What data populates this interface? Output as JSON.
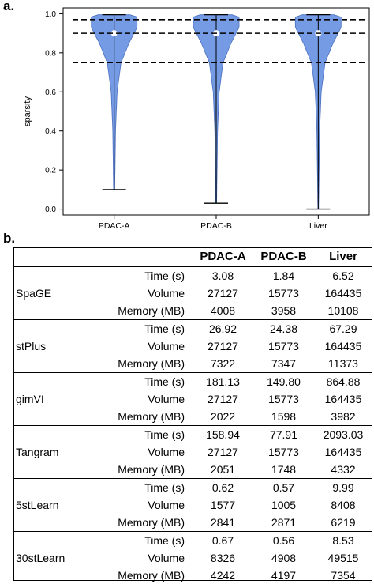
{
  "panel_a_label": "a.",
  "panel_b_label": "b.",
  "chart_data": {
    "type": "violin",
    "ylabel": "sparsity",
    "xlabel": "",
    "ylim": [
      -0.03,
      1.03
    ],
    "yticks": [
      "0.0",
      "0.2",
      "0.4",
      "0.6",
      "0.8",
      "1.0"
    ],
    "categories": [
      "PDAC-A",
      "PDAC-B",
      "Liver"
    ],
    "series": [
      {
        "category": "PDAC-A",
        "min": 0.1,
        "max": 0.995,
        "median": 0.9
      },
      {
        "category": "PDAC-B",
        "min": 0.03,
        "max": 0.995,
        "median": 0.9
      },
      {
        "category": "Liver",
        "min": 0.0,
        "max": 0.995,
        "median": 0.9
      }
    ],
    "reference_lines": [
      0.97,
      0.9,
      0.75
    ],
    "color": "#6e96e3"
  },
  "table": {
    "headers": [
      "",
      "",
      "PDAC-A",
      "PDAC-B",
      "Liver"
    ],
    "groups": [
      {
        "method": "SpaGE",
        "rows": [
          {
            "metric": "Time (s)",
            "values": [
              "3.08",
              "1.84",
              "6.52"
            ]
          },
          {
            "metric": "Volume",
            "values": [
              "27127",
              "15773",
              "164435"
            ]
          },
          {
            "metric": "Memory (MB)",
            "values": [
              "4008",
              "3958",
              "10108"
            ]
          }
        ]
      },
      {
        "method": "stPlus",
        "rows": [
          {
            "metric": "Time (s)",
            "values": [
              "26.92",
              "24.38",
              "67.29"
            ]
          },
          {
            "metric": "Volume",
            "values": [
              "27127",
              "15773",
              "164435"
            ]
          },
          {
            "metric": "Memory (MB)",
            "values": [
              "7322",
              "7347",
              "11373"
            ]
          }
        ]
      },
      {
        "method": "gimVI",
        "rows": [
          {
            "metric": "Time (s)",
            "values": [
              "181.13",
              "149.80",
              "864.88"
            ]
          },
          {
            "metric": "Volume",
            "values": [
              "27127",
              "15773",
              "164435"
            ]
          },
          {
            "metric": "Memory (MB)",
            "values": [
              "2022",
              "1598",
              "3982"
            ]
          }
        ]
      },
      {
        "method": "Tangram",
        "rows": [
          {
            "metric": "Time (s)",
            "values": [
              "158.94",
              "77.91",
              "2093.03"
            ]
          },
          {
            "metric": "Volume",
            "values": [
              "27127",
              "15773",
              "164435"
            ]
          },
          {
            "metric": "Memory (MB)",
            "values": [
              "2051",
              "1748",
              "4332"
            ]
          }
        ]
      },
      {
        "method": "5stLearn",
        "rows": [
          {
            "metric": "Time (s)",
            "values": [
              "0.62",
              "0.57",
              "9.99"
            ]
          },
          {
            "metric": "Volume",
            "values": [
              "1577",
              "1005",
              "8408"
            ]
          },
          {
            "metric": "Memory (MB)",
            "values": [
              "2841",
              "2871",
              "6219"
            ]
          }
        ]
      },
      {
        "method": "30stLearn",
        "rows": [
          {
            "metric": "Time (s)",
            "values": [
              "0.67",
              "0.56",
              "8.53"
            ]
          },
          {
            "metric": "Volume",
            "values": [
              "8326",
              "4908",
              "49515"
            ]
          },
          {
            "metric": "Memory (MB)",
            "values": [
              "4242",
              "4197",
              "7354"
            ]
          }
        ]
      }
    ]
  }
}
